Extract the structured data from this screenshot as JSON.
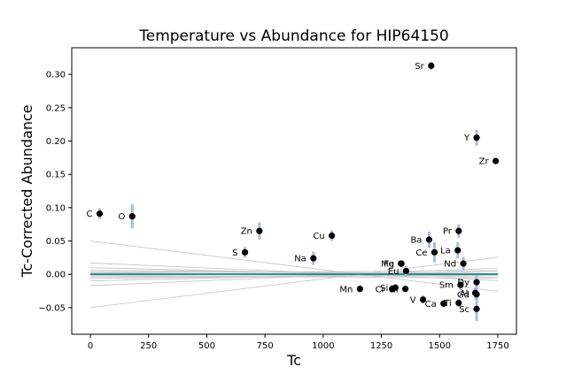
{
  "chart_data": {
    "type": "scatter",
    "title": "Temperature vs Abundance for HIP64150",
    "xlabel": "Tc",
    "ylabel": "Tc-Corrected Abundance",
    "xlim": [
      -80,
      1830
    ],
    "ylim": [
      -0.09,
      0.34
    ],
    "xticks": [
      0,
      250,
      500,
      750,
      1000,
      1250,
      1500,
      1750
    ],
    "yticks": [
      -0.05,
      0.0,
      0.05,
      0.1,
      0.15,
      0.2,
      0.25,
      0.3
    ],
    "ytick_labels": [
      "−0.05",
      "0.00",
      "0.05",
      "0.10",
      "0.15",
      "0.20",
      "0.25",
      "0.30"
    ],
    "grid": false,
    "colors": {
      "point": "#000000",
      "errorbar": "#a8bcd8",
      "fit": "#2a8a8a",
      "band": "#c8c8c8"
    },
    "points": [
      {
        "label": "C",
        "x": 40,
        "y": 0.091,
        "err": 0.008
      },
      {
        "label": "O",
        "x": 180,
        "y": 0.087,
        "err": 0.018
      },
      {
        "label": "S",
        "x": 664,
        "y": 0.033,
        "err": 0.008
      },
      {
        "label": "Zn",
        "x": 726,
        "y": 0.065,
        "err": 0.013
      },
      {
        "label": "Na",
        "x": 958,
        "y": 0.024,
        "err": 0.01
      },
      {
        "label": "Cu",
        "x": 1037,
        "y": 0.058,
        "err": 0.008
      },
      {
        "label": "Mn",
        "x": 1158,
        "y": -0.022,
        "err": 0.005
      },
      {
        "label": "Cr",
        "x": 1296,
        "y": -0.022,
        "err": 0.006
      },
      {
        "label": "Si",
        "x": 1310,
        "y": -0.02,
        "err": 0.005
      },
      {
        "label": "Fe",
        "x": 1334,
        "y": 0.016,
        "err": 0.004
      },
      {
        "label": "Mg",
        "x": 1336,
        "y": 0.016,
        "err": 0.005
      },
      {
        "label": "Ni",
        "x": 1353,
        "y": -0.022,
        "err": 0.005
      },
      {
        "label": "V",
        "x": 1429,
        "y": -0.038,
        "err": 0.006
      },
      {
        "label": "Eu",
        "x": 1356,
        "y": 0.005,
        "err": 0.008
      },
      {
        "label": "Ba",
        "x": 1455,
        "y": 0.052,
        "err": 0.012
      },
      {
        "label": "Ce",
        "x": 1478,
        "y": 0.033,
        "err": 0.015
      },
      {
        "label": "Ca",
        "x": 1517,
        "y": -0.044,
        "err": 0.005
      },
      {
        "label": "Ti",
        "x": 1582,
        "y": -0.043,
        "err": 0.006
      },
      {
        "label": "La",
        "x": 1578,
        "y": 0.036,
        "err": 0.012
      },
      {
        "label": "Pr",
        "x": 1582,
        "y": 0.065,
        "err": 0.01
      },
      {
        "label": "Nd",
        "x": 1602,
        "y": 0.016,
        "err": 0.01
      },
      {
        "label": "Sm",
        "x": 1590,
        "y": -0.016,
        "err": 0.008
      },
      {
        "label": "Dy",
        "x": 1659,
        "y": -0.012,
        "err": 0.01
      },
      {
        "label": "Al",
        "x": 1653,
        "y": -0.028,
        "err": 0.008
      },
      {
        "label": "Gd",
        "x": 1659,
        "y": -0.03,
        "err": 0.008
      },
      {
        "label": "Sc",
        "x": 1659,
        "y": -0.052,
        "err": 0.018
      },
      {
        "label": "Sr",
        "x": 1464,
        "y": 0.313,
        "err": 0.006
      },
      {
        "label": "Y",
        "x": 1659,
        "y": 0.205,
        "err": 0.012
      },
      {
        "label": "Zr",
        "x": 1741,
        "y": 0.17,
        "err": 0.004
      }
    ],
    "fit_line": {
      "intercept": 0.0,
      "slope": 0.0
    },
    "band_lines": [
      {
        "intercept": 0.05,
        "slope": -4.32e-05
      },
      {
        "intercept": -0.05,
        "slope": 4.32e-05
      },
      {
        "intercept": 0.017,
        "slope": -1.5e-05
      },
      {
        "intercept": -0.017,
        "slope": 1.5e-05
      },
      {
        "intercept": 0.01,
        "slope": -8.5e-06
      },
      {
        "intercept": -0.01,
        "slope": 8.5e-06
      },
      {
        "intercept": 0.006,
        "slope": -3e-06
      },
      {
        "intercept": -0.006,
        "slope": 3e-06
      },
      {
        "intercept": 0.004,
        "slope": -1.5e-06
      },
      {
        "intercept": -0.004,
        "slope": 1.5e-06
      },
      {
        "intercept": 0.002,
        "slope": 2e-06
      },
      {
        "intercept": -0.002,
        "slope": -2e-06
      }
    ]
  }
}
